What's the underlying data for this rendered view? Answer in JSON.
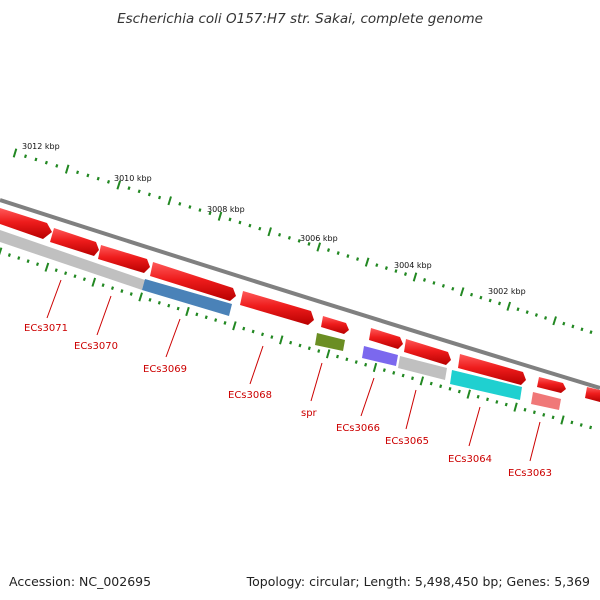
{
  "title": "Escherichia coli O157:H7 str. Sakai, complete genome",
  "footer": {
    "accession": "Accession: NC_002695",
    "summary": "Topology: circular; Length: 5,498,450 bp; Genes: 5,369"
  },
  "ruler": {
    "labels": [
      "3012 kbp",
      "3010 kbp",
      "3008 kbp",
      "3006 kbp",
      "3004 kbp",
      "3002 kbp"
    ],
    "tick_color": "#228822"
  },
  "backbone_color": "#808080",
  "genes": [
    {
      "label": "ECs3071",
      "color": "#e01f1f"
    },
    {
      "label": "ECs3070",
      "color": "#bfbfbf"
    },
    {
      "label": "ECs3069",
      "color": "#4a82b8"
    },
    {
      "label": "ECs3068",
      "color": "#e01f1f"
    },
    {
      "label": "spr",
      "color": "#6b8e23"
    },
    {
      "label": "ECs3066",
      "color": "#7b68ee"
    },
    {
      "label": "ECs3065",
      "color": "#bfbfbf"
    },
    {
      "label": "ECs3064",
      "color": "#1fd0d0"
    },
    {
      "label": "ECs3063",
      "color": "#f07878"
    }
  ],
  "colors": {
    "forward_gene": "#e01f1f",
    "label_text": "#cc0000"
  }
}
